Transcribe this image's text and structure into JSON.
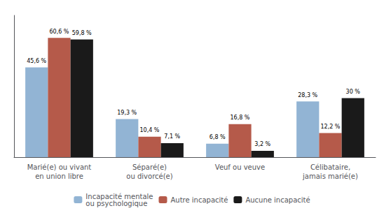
{
  "chart_data": {
    "type": "bar",
    "categories": [
      "Marié(e) ou vivant\nen union libre",
      "Séparé(e)\nou divorcé(e)",
      "Veuf ou veuve",
      "Célibataire,\njamais marié(e)"
    ],
    "series": [
      {
        "name": "Incapacité mentale\nou psychologique",
        "color": "#92B4D4",
        "values": [
          45.6,
          19.3,
          6.8,
          28.3
        ],
        "value_labels": [
          "45,6 %",
          "19,3 %",
          "6,8 %",
          "28,3 %"
        ]
      },
      {
        "name": "Autre incapacité",
        "color": "#B55A4A",
        "values": [
          60.6,
          10.4,
          16.8,
          12.2
        ],
        "value_labels": [
          "60,6 %",
          "10,4 %",
          "16,8 %",
          "12,2 %"
        ]
      },
      {
        "name": "Aucune incapacité",
        "color": "#1A1A1A",
        "values": [
          59.8,
          7.1,
          3.2,
          30.0
        ],
        "value_labels": [
          "59,8 %",
          "7,1 %",
          "3,2 %",
          "30 %"
        ]
      }
    ],
    "ylim": [
      0,
      72
    ],
    "grid": false,
    "legend": "bottom",
    "data_labels": true,
    "tick_labels": "x"
  }
}
